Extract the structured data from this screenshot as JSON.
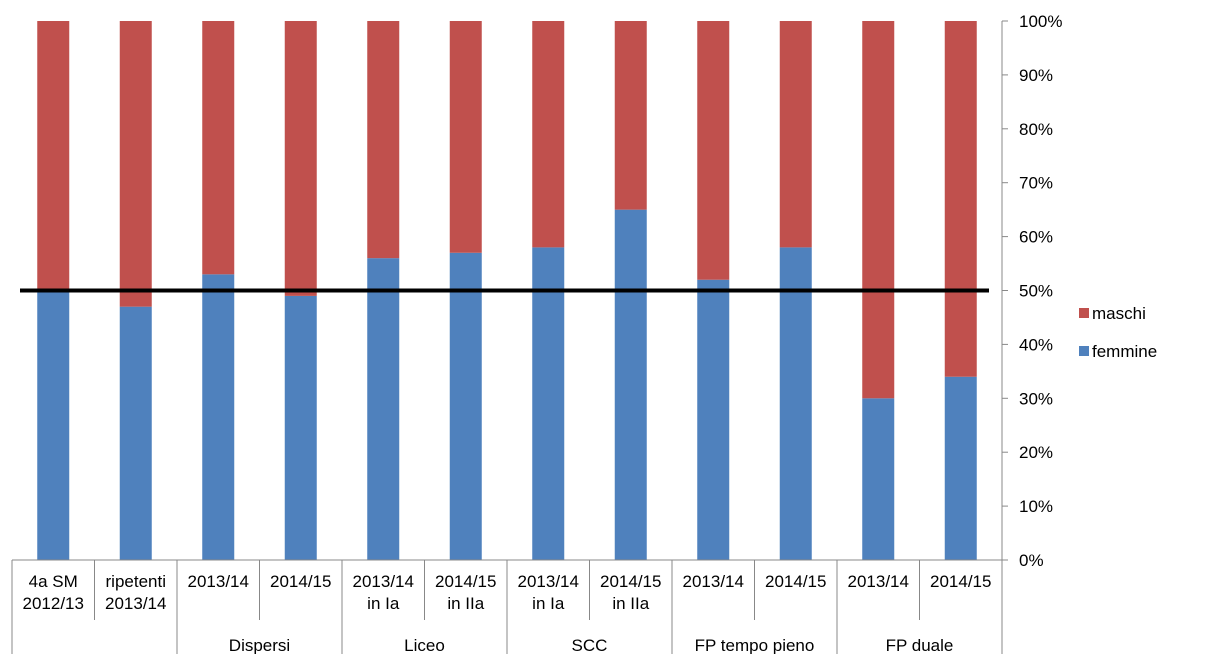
{
  "chart_data": {
    "type": "bar",
    "stacked": true,
    "normalized": true,
    "categories": [
      [
        "4a SM",
        "2012/13"
      ],
      [
        "ripetenti",
        "2013/14"
      ],
      [
        "2013/14"
      ],
      [
        "2014/15"
      ],
      [
        "2013/14",
        "in Ia"
      ],
      [
        "2014/15",
        "in IIa"
      ],
      [
        "2013/14",
        "in Ia"
      ],
      [
        "2014/15",
        "in IIa"
      ],
      [
        "2013/14"
      ],
      [
        "2014/15"
      ],
      [
        "2013/14"
      ],
      [
        "2014/15"
      ]
    ],
    "groups": [
      {
        "label": "",
        "span": 2
      },
      {
        "label": "Dispersi",
        "span": 2
      },
      {
        "label": "Liceo",
        "span": 2
      },
      {
        "label": "SCC",
        "span": 2
      },
      {
        "label": "FP tempo pieno",
        "span": 2
      },
      {
        "label": "FP duale",
        "span": 2
      }
    ],
    "series": [
      {
        "name": "femmine",
        "color": "#4f81bd",
        "values": [
          50,
          47,
          53,
          49,
          56,
          57,
          58,
          65,
          52,
          58,
          30,
          34
        ]
      },
      {
        "name": "maschi",
        "color": "#c0504d",
        "values": [
          50,
          53,
          47,
          51,
          44,
          43,
          42,
          35,
          48,
          42,
          70,
          66
        ]
      }
    ],
    "reference_line": {
      "value": 50,
      "color": "#000000"
    },
    "ylim": [
      0,
      100
    ],
    "yticks": [
      "0%",
      "10%",
      "20%",
      "30%",
      "40%",
      "50%",
      "60%",
      "70%",
      "80%",
      "90%",
      "100%"
    ],
    "yaxis_position": "right",
    "grid": false,
    "legend": {
      "position": "right",
      "entries": [
        "maschi",
        "femmine"
      ]
    }
  }
}
